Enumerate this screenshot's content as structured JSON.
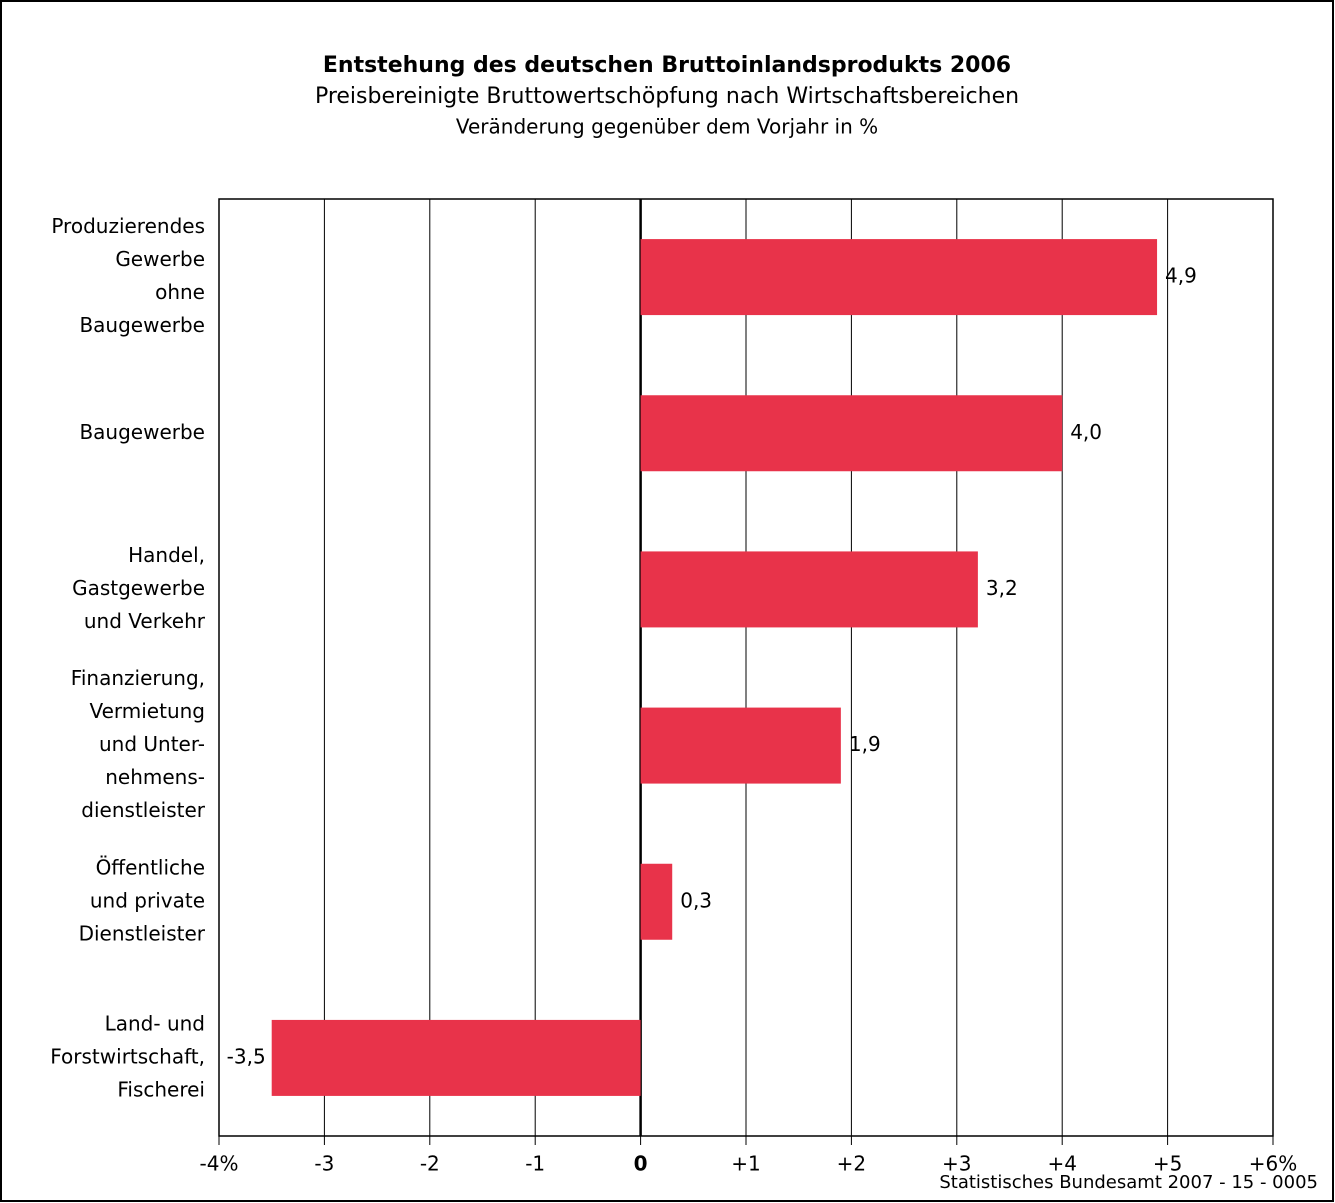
{
  "chart_data": {
    "type": "bar",
    "orientation": "horizontal",
    "title": "Entstehung des deutschen Bruttoinlandsprodukts 2006",
    "subtitle": "Preisbereinigte Bruttowertschöpfung nach Wirtschaftsbereichen",
    "axis_label": "Veränderung gegenüber dem Vorjahr in %",
    "categories": [
      [
        "Produzierendes",
        "Gewerbe",
        "ohne",
        "Baugewerbe"
      ],
      [
        "Baugewerbe"
      ],
      [
        "Handel,",
        "Gastgewerbe",
        "und Verkehr"
      ],
      [
        "Finanzierung,",
        "Vermietung",
        "und Unter-",
        "nehmens-",
        "dienstleister"
      ],
      [
        "Öffentliche",
        "und private",
        "Dienstleister"
      ],
      [
        "Land- und",
        "Forstwirtschaft,",
        "Fischerei"
      ]
    ],
    "values": [
      4.9,
      4.0,
      3.2,
      1.9,
      0.3,
      -3.5
    ],
    "value_labels": [
      "4,9",
      "4,0",
      "3,2",
      "1,9",
      "0,3",
      "-3,5"
    ],
    "color": "#e8334a",
    "xlim": [
      -4,
      6
    ],
    "xticks": [
      {
        "value": -4,
        "label": "-4%"
      },
      -3,
      -2,
      -1,
      0,
      {
        "value": 1,
        "label": "+1"
      },
      {
        "value": 2,
        "label": "+2"
      },
      {
        "value": 3,
        "label": "+3"
      },
      {
        "value": 4,
        "label": "+4"
      },
      {
        "value": 5,
        "label": "+5"
      },
      {
        "value": 6,
        "label": "+6%"
      }
    ],
    "grid": true,
    "source": "Statistisches Bundesamt 2007 - 15 - 0005"
  }
}
